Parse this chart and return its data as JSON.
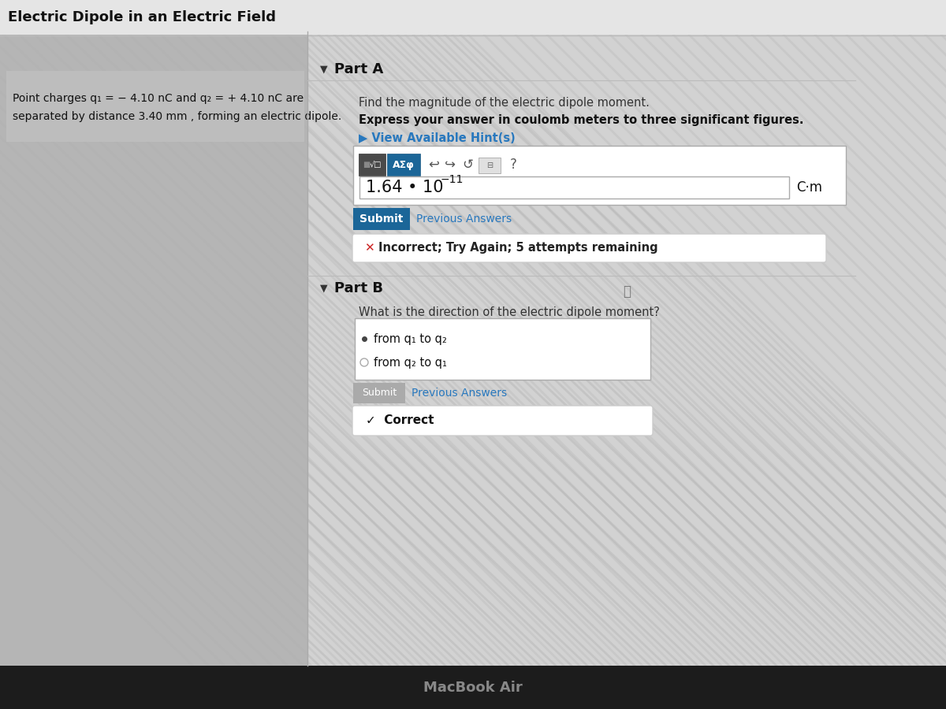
{
  "title": "Electric Dipole in an Electric Field",
  "bg_color": "#c8c8c8",
  "left_panel_color": "#b5b5b5",
  "right_panel_color": "#cbcbcb",
  "white_bg": "#ffffff",
  "problem_text_line1": "Point charges q₁ = − 4.10 nC and q₂ = + 4.10 nC are",
  "problem_text_line2": "separated by distance 3.40 mm , forming an electric dipole.",
  "part_a_label": "Part A",
  "part_a_q1": "Find the magnitude of the electric dipole moment.",
  "part_a_q2": "Express your answer in coulomb meters to three significant figures.",
  "hint_text": "▶ View Available Hint(s)",
  "answer_value": "1.64 • 10",
  "answer_exponent": "−11",
  "answer_unit": "C·m",
  "submit_color": "#1b6698",
  "submit_text": "Submit",
  "prev_answers_text": "Previous Answers",
  "incorrect_text": "Incorrect; Try Again; 5 attempts remaining",
  "part_b_label": "Part B",
  "part_b_q": "What is the direction of the electric dipole moment?",
  "option1": "from q₁ to q₂",
  "option2": "from q₂ to q₁",
  "correct_text": "✓  Correct",
  "macbook_text": "MacBook Air",
  "bottom_bar_color": "#1c1c1c",
  "link_color": "#2878be",
  "incorrect_x_color": "#cc2222",
  "title_bar_color": "#e5e5e5",
  "sep_line_color": "#bbbbbb",
  "stripe_color": "#c0c0c0",
  "stripe_bg_color": "#d2d2d2"
}
